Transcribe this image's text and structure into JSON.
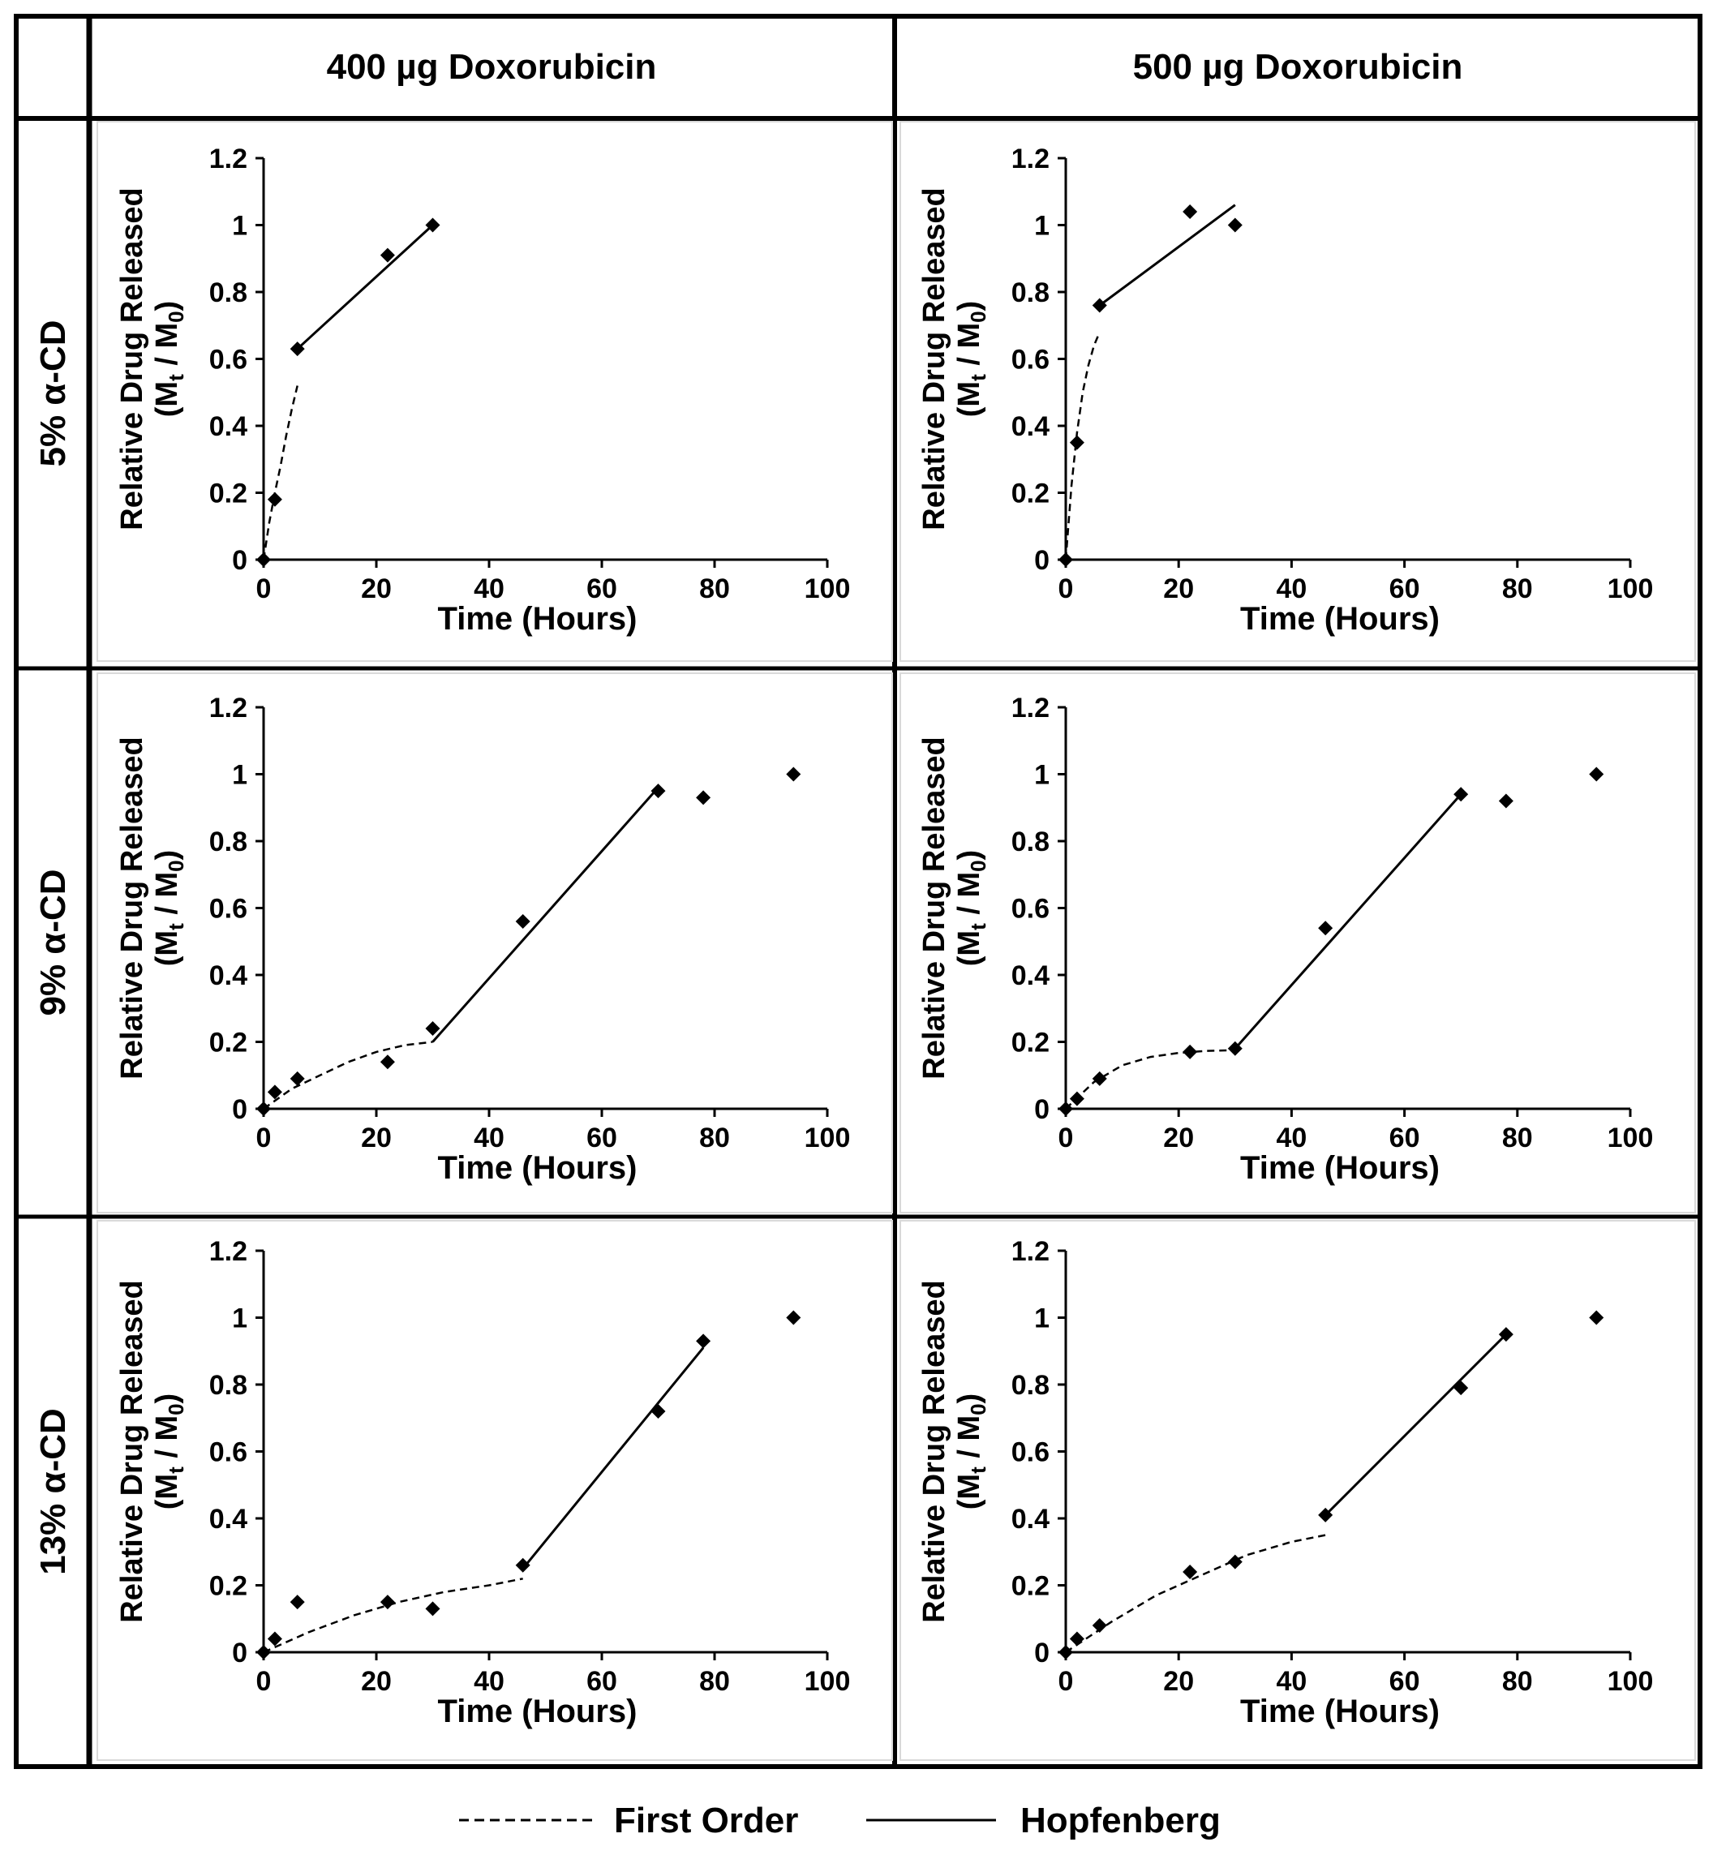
{
  "figure": {
    "col_headers": [
      "400 µg Doxorubicin",
      "500 µg Doxorubicin"
    ],
    "row_headers": [
      "5% α-CD",
      "9% α-CD",
      "13% α-CD"
    ],
    "legend": {
      "first_order": "First Order",
      "hopfenberg": "Hopfenberg"
    }
  },
  "chart_data": [
    {
      "type": "scatter",
      "row": "5% α-CD",
      "col": "400 µg Doxorubicin",
      "xlabel": "Time (Hours)",
      "ylabel_main": "Relative Drug Released",
      "ylabel_sub": {
        "open": "(M",
        "s1": "t",
        "mid": " / M",
        "s2": "0",
        "close": ")"
      },
      "xlim": [
        0,
        100
      ],
      "ylim": [
        0,
        1.2
      ],
      "xticks": [
        0,
        20,
        40,
        60,
        80,
        100
      ],
      "yticks": [
        0,
        0.2,
        0.4,
        0.6,
        0.8,
        1,
        1.2
      ],
      "tick_labels_x": [
        "0",
        "20",
        "40",
        "60",
        "80",
        "100"
      ],
      "tick_labels_y": [
        "0",
        "0.2",
        "0.4",
        "0.6",
        "0.8",
        "1",
        "1.2"
      ],
      "points": [
        {
          "x": 0,
          "y": 0
        },
        {
          "x": 2,
          "y": 0.18
        },
        {
          "x": 6,
          "y": 0.63
        },
        {
          "x": 22,
          "y": 0.91
        },
        {
          "x": 30,
          "y": 1.0
        }
      ],
      "first_order": [
        {
          "x": 0,
          "y": 0
        },
        {
          "x": 1,
          "y": 0.11
        },
        {
          "x": 2,
          "y": 0.2
        },
        {
          "x": 3,
          "y": 0.28
        },
        {
          "x": 4,
          "y": 0.37
        },
        {
          "x": 5,
          "y": 0.45
        },
        {
          "x": 6,
          "y": 0.52
        }
      ],
      "hopfenberg": [
        {
          "x": 6,
          "y": 0.63
        },
        {
          "x": 30,
          "y": 1.0
        }
      ]
    },
    {
      "type": "scatter",
      "row": "5% α-CD",
      "col": "500 µg Doxorubicin",
      "xlabel": "Time (Hours)",
      "ylabel_main": "Relative Drug Released",
      "ylabel_sub": {
        "open": "(M",
        "s1": "t",
        "mid": " / M",
        "s2": "0",
        "close": ")"
      },
      "xlim": [
        0,
        100
      ],
      "ylim": [
        0,
        1.2
      ],
      "xticks": [
        0,
        20,
        40,
        60,
        80,
        100
      ],
      "yticks": [
        0,
        0.2,
        0.4,
        0.6,
        0.8,
        1,
        1.2
      ],
      "tick_labels_x": [
        "0",
        "20",
        "40",
        "60",
        "80",
        "100"
      ],
      "tick_labels_y": [
        "0",
        "0.2",
        "0.4",
        "0.6",
        "0.8",
        "1",
        "1.2"
      ],
      "points": [
        {
          "x": 0,
          "y": 0
        },
        {
          "x": 2,
          "y": 0.35
        },
        {
          "x": 6,
          "y": 0.76
        },
        {
          "x": 22,
          "y": 1.04
        },
        {
          "x": 30,
          "y": 1.0
        }
      ],
      "first_order": [
        {
          "x": 0,
          "y": 0
        },
        {
          "x": 1,
          "y": 0.22
        },
        {
          "x": 2,
          "y": 0.38
        },
        {
          "x": 3,
          "y": 0.5
        },
        {
          "x": 4,
          "y": 0.58
        },
        {
          "x": 5,
          "y": 0.64
        },
        {
          "x": 6,
          "y": 0.68
        }
      ],
      "hopfenberg": [
        {
          "x": 6,
          "y": 0.76
        },
        {
          "x": 30,
          "y": 1.06
        }
      ]
    },
    {
      "type": "scatter",
      "row": "9% α-CD",
      "col": "400 µg Doxorubicin",
      "xlabel": "Time (Hours)",
      "ylabel_main": "Relative Drug Released",
      "ylabel_sub": {
        "open": "(M",
        "s1": "t",
        "mid": " / M",
        "s2": "0",
        "close": ")"
      },
      "xlim": [
        0,
        100
      ],
      "ylim": [
        0,
        1.2
      ],
      "xticks": [
        0,
        20,
        40,
        60,
        80,
        100
      ],
      "yticks": [
        0,
        0.2,
        0.4,
        0.6,
        0.8,
        1,
        1.2
      ],
      "tick_labels_x": [
        "0",
        "20",
        "40",
        "60",
        "80",
        "100"
      ],
      "tick_labels_y": [
        "0",
        "0.2",
        "0.4",
        "0.6",
        "0.8",
        "1",
        "1.2"
      ],
      "points": [
        {
          "x": 0,
          "y": 0
        },
        {
          "x": 2,
          "y": 0.05
        },
        {
          "x": 6,
          "y": 0.09
        },
        {
          "x": 22,
          "y": 0.14
        },
        {
          "x": 30,
          "y": 0.24
        },
        {
          "x": 46,
          "y": 0.56
        },
        {
          "x": 70,
          "y": 0.95
        },
        {
          "x": 78,
          "y": 0.93
        },
        {
          "x": 94,
          "y": 1.0
        }
      ],
      "first_order": [
        {
          "x": 0,
          "y": 0
        },
        {
          "x": 5,
          "y": 0.06
        },
        {
          "x": 10,
          "y": 0.1
        },
        {
          "x": 15,
          "y": 0.14
        },
        {
          "x": 20,
          "y": 0.17
        },
        {
          "x": 25,
          "y": 0.19
        },
        {
          "x": 30,
          "y": 0.2
        }
      ],
      "hopfenberg": [
        {
          "x": 30,
          "y": 0.2
        },
        {
          "x": 70,
          "y": 0.96
        }
      ]
    },
    {
      "type": "scatter",
      "row": "9% α-CD",
      "col": "500 µg Doxorubicin",
      "xlabel": "Time (Hours)",
      "ylabel_main": "Relative Drug Released",
      "ylabel_sub": {
        "open": "(M",
        "s1": "t",
        "mid": " / M",
        "s2": "0",
        "close": ")"
      },
      "xlim": [
        0,
        100
      ],
      "ylim": [
        0,
        1.2
      ],
      "xticks": [
        0,
        20,
        40,
        60,
        80,
        100
      ],
      "yticks": [
        0,
        0.2,
        0.4,
        0.6,
        0.8,
        1,
        1.2
      ],
      "tick_labels_x": [
        "0",
        "20",
        "40",
        "60",
        "80",
        "100"
      ],
      "tick_labels_y": [
        "0",
        "0.2",
        "0.4",
        "0.6",
        "0.8",
        "1",
        "1.2"
      ],
      "points": [
        {
          "x": 0,
          "y": 0
        },
        {
          "x": 2,
          "y": 0.03
        },
        {
          "x": 6,
          "y": 0.09
        },
        {
          "x": 22,
          "y": 0.17
        },
        {
          "x": 30,
          "y": 0.18
        },
        {
          "x": 46,
          "y": 0.54
        },
        {
          "x": 70,
          "y": 0.94
        },
        {
          "x": 78,
          "y": 0.92
        },
        {
          "x": 94,
          "y": 1.0
        }
      ],
      "first_order": [
        {
          "x": 0,
          "y": 0
        },
        {
          "x": 5,
          "y": 0.08
        },
        {
          "x": 10,
          "y": 0.13
        },
        {
          "x": 15,
          "y": 0.155
        },
        {
          "x": 20,
          "y": 0.167
        },
        {
          "x": 25,
          "y": 0.173
        },
        {
          "x": 30,
          "y": 0.175
        }
      ],
      "hopfenberg": [
        {
          "x": 30,
          "y": 0.18
        },
        {
          "x": 70,
          "y": 0.94
        }
      ]
    },
    {
      "type": "scatter",
      "row": "13% α-CD",
      "col": "400 µg Doxorubicin",
      "xlabel": "Time (Hours)",
      "ylabel_main": "Relative Drug Released",
      "ylabel_sub": {
        "open": "(M",
        "s1": "t",
        "mid": " / M",
        "s2": "0",
        "close": ")"
      },
      "xlim": [
        0,
        100
      ],
      "ylim": [
        0,
        1.2
      ],
      "xticks": [
        0,
        20,
        40,
        60,
        80,
        100
      ],
      "yticks": [
        0,
        0.2,
        0.4,
        0.6,
        0.8,
        1,
        1.2
      ],
      "tick_labels_x": [
        "0",
        "20",
        "40",
        "60",
        "80",
        "100"
      ],
      "tick_labels_y": [
        "0",
        "0.2",
        "0.4",
        "0.6",
        "0.8",
        "1",
        "1.2"
      ],
      "points": [
        {
          "x": 0,
          "y": 0
        },
        {
          "x": 2,
          "y": 0.04
        },
        {
          "x": 6,
          "y": 0.15
        },
        {
          "x": 22,
          "y": 0.15
        },
        {
          "x": 30,
          "y": 0.13
        },
        {
          "x": 46,
          "y": 0.26
        },
        {
          "x": 70,
          "y": 0.72
        },
        {
          "x": 78,
          "y": 0.93
        },
        {
          "x": 94,
          "y": 1.0
        }
      ],
      "first_order": [
        {
          "x": 0,
          "y": 0
        },
        {
          "x": 8,
          "y": 0.06
        },
        {
          "x": 16,
          "y": 0.11
        },
        {
          "x": 24,
          "y": 0.15
        },
        {
          "x": 32,
          "y": 0.18
        },
        {
          "x": 40,
          "y": 0.2
        },
        {
          "x": 46,
          "y": 0.22
        }
      ],
      "hopfenberg": [
        {
          "x": 46,
          "y": 0.25
        },
        {
          "x": 78,
          "y": 0.91
        }
      ]
    },
    {
      "type": "scatter",
      "row": "13% α-CD",
      "col": "500 µg Doxorubicin",
      "xlabel": "Time (Hours)",
      "ylabel_main": "Relative Drug Released",
      "ylabel_sub": {
        "open": "(M",
        "s1": "t",
        "mid": " / M",
        "s2": "0",
        "close": ")"
      },
      "xlim": [
        0,
        100
      ],
      "ylim": [
        0,
        1.2
      ],
      "xticks": [
        0,
        20,
        40,
        60,
        80,
        100
      ],
      "yticks": [
        0,
        0.2,
        0.4,
        0.6,
        0.8,
        1,
        1.2
      ],
      "tick_labels_x": [
        "0",
        "20",
        "40",
        "60",
        "80",
        "100"
      ],
      "tick_labels_y": [
        "0",
        "0.2",
        "0.4",
        "0.6",
        "0.8",
        "1",
        "1.2"
      ],
      "points": [
        {
          "x": 0,
          "y": 0
        },
        {
          "x": 2,
          "y": 0.04
        },
        {
          "x": 6,
          "y": 0.08
        },
        {
          "x": 22,
          "y": 0.24
        },
        {
          "x": 30,
          "y": 0.27
        },
        {
          "x": 46,
          "y": 0.41
        },
        {
          "x": 70,
          "y": 0.79
        },
        {
          "x": 78,
          "y": 0.95
        },
        {
          "x": 94,
          "y": 1.0
        }
      ],
      "first_order": [
        {
          "x": 0,
          "y": 0
        },
        {
          "x": 8,
          "y": 0.09
        },
        {
          "x": 16,
          "y": 0.17
        },
        {
          "x": 24,
          "y": 0.23
        },
        {
          "x": 32,
          "y": 0.29
        },
        {
          "x": 40,
          "y": 0.33
        },
        {
          "x": 46,
          "y": 0.35
        }
      ],
      "hopfenberg": [
        {
          "x": 46,
          "y": 0.41
        },
        {
          "x": 78,
          "y": 0.95
        }
      ]
    }
  ]
}
